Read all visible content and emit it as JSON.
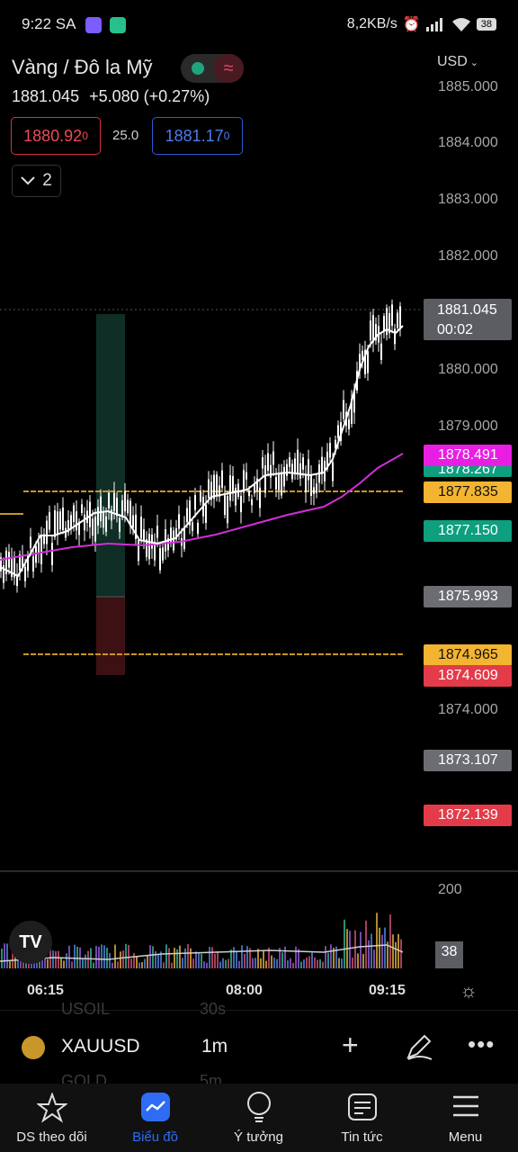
{
  "status_bar": {
    "time": "9:22 SA",
    "net_speed": "8,2KB/s",
    "battery": "38"
  },
  "header": {
    "symbol_title": "Vàng / Đô la Mỹ",
    "last_price": "1881.045",
    "change": "+5.080 (+0.27%)",
    "sell_price": "1880.92",
    "sell_sup": "0",
    "spread": "25.0",
    "buy_price": "1881.17",
    "buy_sup": "0",
    "indicators_count": "2",
    "currency": "USD"
  },
  "price_axis": {
    "labels": [
      "1885.000",
      "1884.000",
      "1883.000",
      "1882.000",
      "1880.000",
      "1879.000",
      "1874.000"
    ],
    "current_price": "1881.045",
    "countdown": "00:02"
  },
  "price_tags": [
    {
      "value": "1878.491",
      "color": "#e91ee3"
    },
    {
      "value": "1878.267",
      "color": "#0e9f7f"
    },
    {
      "value": "1877.835",
      "color": "#f3b431"
    },
    {
      "value": "1877.150",
      "color": "#0e9f7f"
    },
    {
      "value": "1875.993",
      "color": "#6b6d72"
    },
    {
      "value": "1874.965",
      "color": "#f3b431"
    },
    {
      "value": "1874.609",
      "color": "#e33b49"
    },
    {
      "value": "1873.107",
      "color": "#6b6d72"
    },
    {
      "value": "1872.139",
      "color": "#e33b49"
    }
  ],
  "volume_axis": {
    "top_label": "200",
    "current_volume": "38"
  },
  "time_axis": [
    "06:15",
    "08:00",
    "09:15"
  ],
  "ticker_bar": {
    "symbol": "XAUUSD",
    "interval": "1m",
    "ghost_top_left": "USOIL",
    "ghost_top_right": "30s",
    "ghost_bottom_left": "GOLD",
    "ghost_bottom_right": "5m"
  },
  "bottom_nav": [
    {
      "label": "DS theo dõi",
      "icon": "star-icon",
      "active": false
    },
    {
      "label": "Biểu đồ",
      "icon": "chart-icon",
      "active": true
    },
    {
      "label": "Ý tưởng",
      "icon": "lightbulb-icon",
      "active": false
    },
    {
      "label": "Tin tức",
      "icon": "news-icon",
      "active": false
    },
    {
      "label": "Menu",
      "icon": "menu-icon",
      "active": false
    }
  ],
  "colors": {
    "candle": "#ffffff",
    "ema_fast": "#ffffff",
    "ema_slow": "#d12fd8",
    "level_line": "#c8961f",
    "target_zone": "#0f2e26",
    "stop_zone": "#3d1114",
    "accent": "#2f6cf5"
  }
}
